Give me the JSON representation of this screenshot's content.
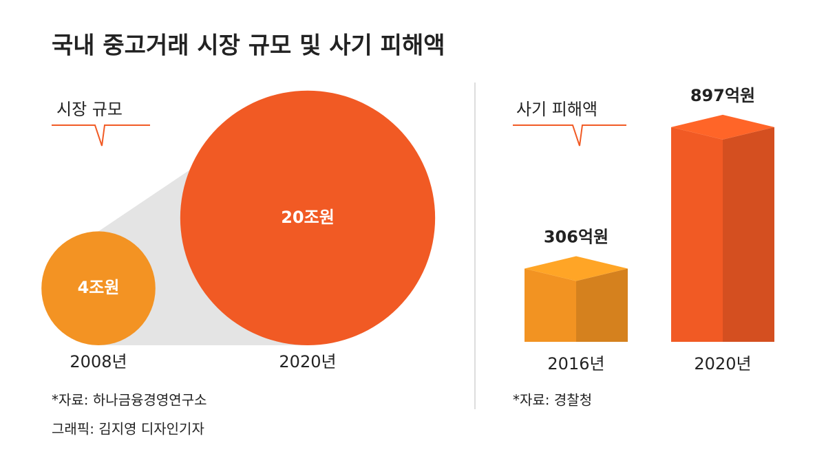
{
  "title": "국내 중고거래 시장 규모 및 사기 피해액",
  "chart_data": [
    {
      "type": "bubble",
      "subtitle": "시장 규모",
      "categories": [
        "2008년",
        "2020년"
      ],
      "values": [
        4,
        20
      ],
      "value_labels": [
        "4조원",
        "20조원"
      ],
      "colors": [
        "#f39323",
        "#f15a24"
      ],
      "source": "*자료: 하나금융경영연구소",
      "credit": "그래픽: 김지영 디자인기자"
    },
    {
      "type": "bar3d",
      "subtitle": "사기 피해액",
      "categories": [
        "2016년",
        "2020년"
      ],
      "values": [
        306,
        897
      ],
      "value_labels": [
        "306억원",
        "897억원"
      ],
      "colors": [
        "#f29322",
        "#f15a24"
      ],
      "source": "*자료: 경찰청"
    }
  ]
}
